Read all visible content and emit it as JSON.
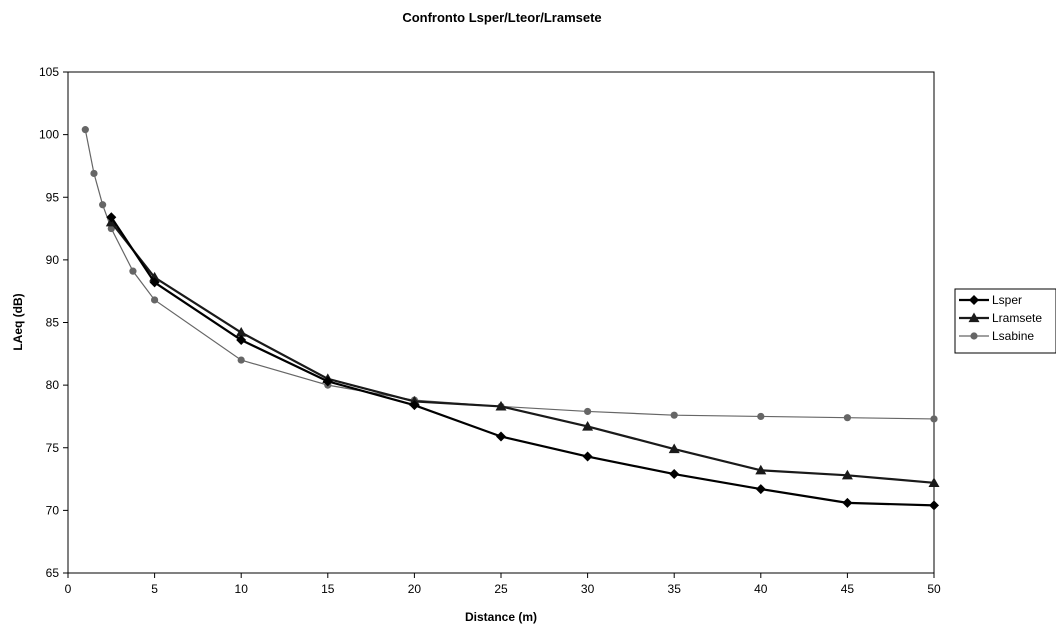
{
  "chart_data": {
    "type": "line",
    "title": "Confronto Lsper/Lteor/Lramsete",
    "xlabel": "Distance (m)",
    "ylabel": "LAeq (dB)",
    "xlim": [
      0,
      50
    ],
    "ylim": [
      65,
      105
    ],
    "xticks": [
      0,
      5,
      10,
      15,
      20,
      25,
      30,
      35,
      40,
      45,
      50
    ],
    "yticks": [
      65,
      70,
      75,
      80,
      85,
      90,
      95,
      100,
      105
    ],
    "grid": false,
    "legend_position": "right",
    "series": [
      {
        "name": "Lsper",
        "marker": "diamond",
        "color": "#000000",
        "x": [
          2.5,
          5,
          10,
          15,
          20,
          25,
          30,
          35,
          40,
          45,
          50
        ],
        "y": [
          93.4,
          88.2,
          83.6,
          80.3,
          78.4,
          75.9,
          74.3,
          72.9,
          71.7,
          70.6,
          70.4
        ]
      },
      {
        "name": "Lramsete",
        "marker": "triangle",
        "color": "#1a1a1a",
        "x": [
          2.5,
          5,
          10,
          15,
          20,
          25,
          30,
          35,
          40,
          45,
          50
        ],
        "y": [
          93.0,
          88.6,
          84.2,
          80.5,
          78.7,
          78.3,
          76.7,
          74.9,
          73.2,
          72.8,
          72.2
        ]
      },
      {
        "name": "Lsabine",
        "marker": "circle",
        "color": "#666666",
        "x": [
          1,
          1.5,
          2,
          2.5,
          3.75,
          5,
          10,
          15,
          20,
          25,
          30,
          35,
          40,
          45,
          50
        ],
        "y": [
          100.4,
          96.9,
          94.4,
          92.5,
          89.1,
          86.8,
          82.0,
          80.0,
          78.8,
          78.3,
          77.9,
          77.6,
          77.5,
          77.4,
          77.3
        ]
      }
    ]
  }
}
